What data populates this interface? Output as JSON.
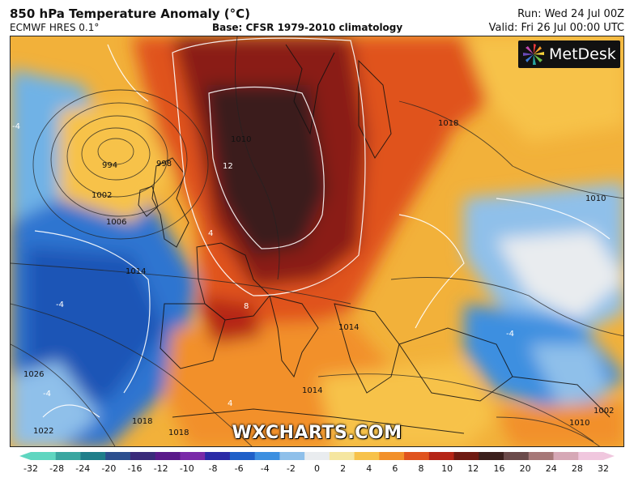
{
  "header": {
    "title": "850 hPa Temperature Anomaly (°C)",
    "model": "ECMWF HRES 0.1°",
    "base": "Base: CFSR 1979-2010 climatology",
    "run": "Run: Wed 24 Jul 00Z",
    "valid": "Valid: Fri 26 Jul 00:00 UTC"
  },
  "logo": {
    "text": "MetDesk",
    "icon": "metdesk-starburst-icon"
  },
  "watermark": "WXCHARTS.COM",
  "map": {
    "region": "Europe and North Atlantic",
    "isobar_labels": [
      "994",
      "998",
      "1002",
      "1006",
      "1010",
      "1014",
      "1018",
      "1022",
      "1026",
      "1010",
      "1018",
      "1014",
      "1018",
      "1014",
      "1010",
      "1002"
    ],
    "anomaly_labels": [
      "12",
      "8",
      "4",
      "-4",
      "-4",
      "-4",
      "4",
      "-4"
    ]
  },
  "colorbar": {
    "ticks": [
      "-32",
      "-28",
      "-24",
      "-20",
      "-16",
      "-12",
      "-10",
      "-8",
      "-6",
      "-4",
      "-2",
      "0",
      "2",
      "4",
      "6",
      "8",
      "10",
      "12",
      "16",
      "20",
      "24",
      "28",
      "32"
    ],
    "colors": [
      "#5fd6c0",
      "#3aa6a0",
      "#1f7e8a",
      "#2c4f8e",
      "#3a2b7a",
      "#5a1a8a",
      "#7a2aa8",
      "#2b2ba6",
      "#1e5fc8",
      "#3c8fe0",
      "#8fc0ea",
      "#e9ecef",
      "#f5e6a0",
      "#f7c24a",
      "#f2902a",
      "#e0531e",
      "#b52516",
      "#6e1a12",
      "#3b1f1c",
      "#6b4a4a",
      "#a67878",
      "#d6a8b6",
      "#f0c7de"
    ]
  }
}
